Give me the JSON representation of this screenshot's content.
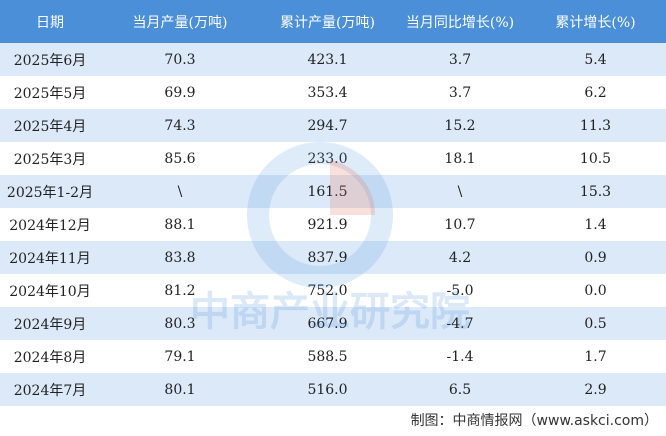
{
  "table": {
    "header": [
      "日期",
      "当月产量(万吨)",
      "累计产量(万吨)",
      "当月同比增长(%)",
      "累计增长(%)"
    ],
    "rows": [
      [
        "2025年6月",
        "70.3",
        "423.1",
        "3.7",
        "5.4"
      ],
      [
        "2025年5月",
        "69.9",
        "353.4",
        "3.7",
        "6.2"
      ],
      [
        "2025年4月",
        "74.3",
        "294.7",
        "15.2",
        "11.3"
      ],
      [
        "2025年3月",
        "85.6",
        "233.0",
        "18.1",
        "10.5"
      ],
      [
        "2025年1-2月",
        "\\",
        "161.5",
        "\\",
        "15.3"
      ],
      [
        "2024年12月",
        "88.1",
        "921.9",
        "10.7",
        "1.4"
      ],
      [
        "2024年11月",
        "83.8",
        "837.9",
        "4.2",
        "0.9"
      ],
      [
        "2024年10月",
        "81.2",
        "752.0",
        "-5.0",
        "0.0"
      ],
      [
        "2024年9月",
        "80.3",
        "667.9",
        "-4.7",
        "0.5"
      ],
      [
        "2024年8月",
        "79.1",
        "588.5",
        "-1.4",
        "1.7"
      ],
      [
        "2024年7月",
        "80.1",
        "516.0",
        "6.5",
        "2.9"
      ]
    ]
  },
  "watermark": "中商产业研究院",
  "footer": "制图：中商情报网（www.askci.com）"
}
